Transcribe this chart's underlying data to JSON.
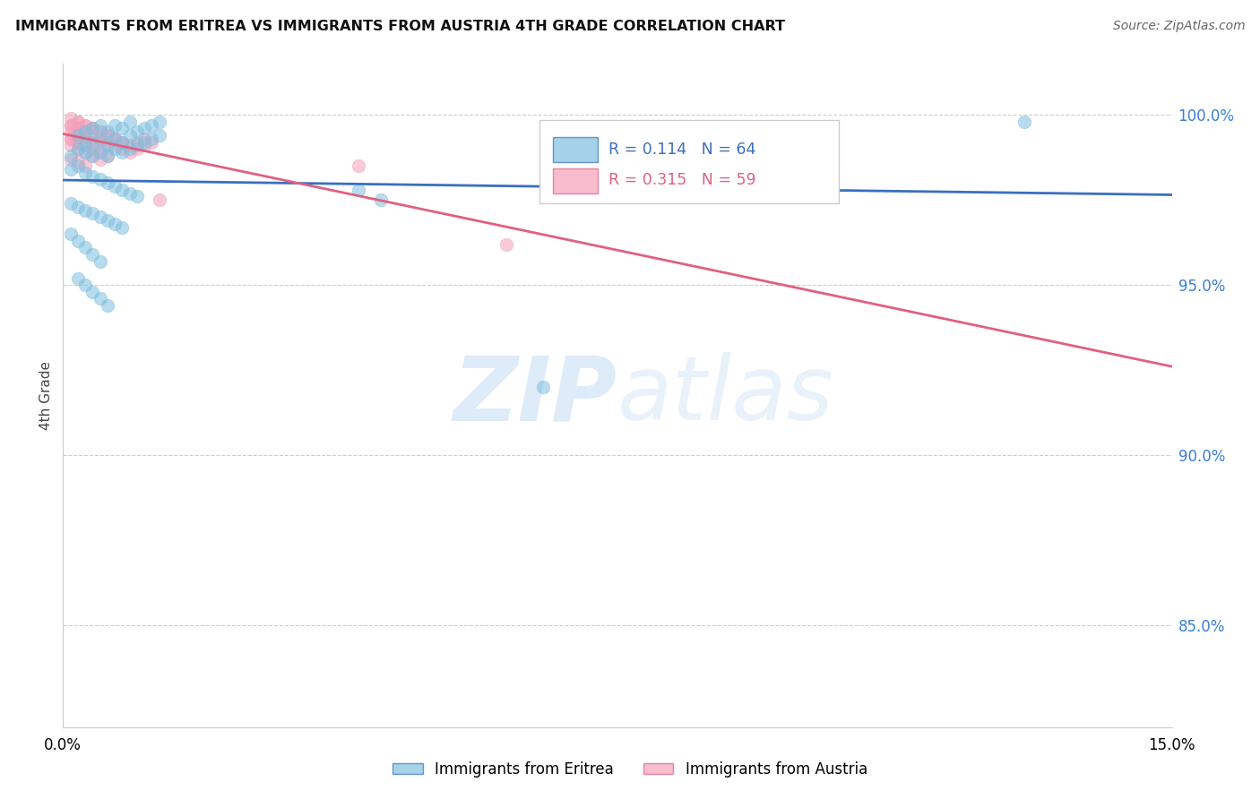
{
  "title": "IMMIGRANTS FROM ERITREA VS IMMIGRANTS FROM AUSTRIA 4TH GRADE CORRELATION CHART",
  "source": "Source: ZipAtlas.com",
  "ylabel": "4th Grade",
  "ytick_vals": [
    0.85,
    0.9,
    0.95,
    1.0
  ],
  "xlim": [
    0.0,
    0.15
  ],
  "ylim": [
    0.82,
    1.015
  ],
  "legend_eritrea_R": "0.114",
  "legend_eritrea_N": "64",
  "legend_austria_R": "0.315",
  "legend_austria_N": "59",
  "color_eritrea": "#7fbfdf",
  "color_austria": "#f4a0b8",
  "trendline_eritrea": "#3a6fbf",
  "trendline_austria": "#e06080",
  "watermark_zip": "ZIP",
  "watermark_atlas": "atlas",
  "eritrea_x": [
    0.001,
    0.002,
    0.002,
    0.003,
    0.003,
    0.003,
    0.004,
    0.004,
    0.004,
    0.005,
    0.005,
    0.005,
    0.006,
    0.006,
    0.006,
    0.007,
    0.007,
    0.007,
    0.008,
    0.008,
    0.008,
    0.009,
    0.009,
    0.009,
    0.01,
    0.01,
    0.011,
    0.011,
    0.012,
    0.012,
    0.013,
    0.013,
    0.001,
    0.002,
    0.003,
    0.004,
    0.005,
    0.006,
    0.007,
    0.008,
    0.009,
    0.01,
    0.001,
    0.002,
    0.003,
    0.004,
    0.005,
    0.006,
    0.007,
    0.008,
    0.002,
    0.003,
    0.004,
    0.005,
    0.006,
    0.04,
    0.043,
    0.065,
    0.13,
    0.001,
    0.002,
    0.003,
    0.004,
    0.005
  ],
  "eritrea_y": [
    0.988,
    0.99,
    0.994,
    0.989,
    0.991,
    0.995,
    0.988,
    0.992,
    0.996,
    0.989,
    0.993,
    0.997,
    0.988,
    0.991,
    0.995,
    0.99,
    0.993,
    0.997,
    0.989,
    0.992,
    0.996,
    0.99,
    0.994,
    0.998,
    0.991,
    0.995,
    0.992,
    0.996,
    0.993,
    0.997,
    0.994,
    0.998,
    0.984,
    0.985,
    0.983,
    0.982,
    0.981,
    0.98,
    0.979,
    0.978,
    0.977,
    0.976,
    0.974,
    0.973,
    0.972,
    0.971,
    0.97,
    0.969,
    0.968,
    0.967,
    0.952,
    0.95,
    0.948,
    0.946,
    0.944,
    0.978,
    0.975,
    0.92,
    0.998,
    0.965,
    0.963,
    0.961,
    0.959,
    0.957
  ],
  "austria_x": [
    0.001,
    0.002,
    0.002,
    0.003,
    0.003,
    0.004,
    0.004,
    0.005,
    0.005,
    0.006,
    0.006,
    0.007,
    0.007,
    0.008,
    0.008,
    0.009,
    0.009,
    0.01,
    0.01,
    0.011,
    0.011,
    0.012,
    0.001,
    0.002,
    0.003,
    0.004,
    0.005,
    0.006,
    0.007,
    0.008,
    0.001,
    0.002,
    0.003,
    0.004,
    0.005,
    0.006,
    0.001,
    0.002,
    0.003,
    0.004,
    0.005,
    0.001,
    0.002,
    0.003,
    0.004,
    0.001,
    0.002,
    0.003,
    0.004,
    0.005,
    0.001,
    0.002,
    0.003,
    0.04,
    0.013,
    0.06,
    0.001,
    0.002,
    0.003
  ],
  "austria_y": [
    0.997,
    0.996,
    0.998,
    0.995,
    0.997,
    0.994,
    0.996,
    0.993,
    0.995,
    0.992,
    0.994,
    0.991,
    0.993,
    0.99,
    0.992,
    0.989,
    0.991,
    0.99,
    0.992,
    0.991,
    0.993,
    0.992,
    0.999,
    0.998,
    0.997,
    0.996,
    0.995,
    0.994,
    0.993,
    0.992,
    0.993,
    0.992,
    0.991,
    0.99,
    0.989,
    0.988,
    0.995,
    0.994,
    0.993,
    0.992,
    0.991,
    0.997,
    0.996,
    0.995,
    0.994,
    0.991,
    0.99,
    0.989,
    0.988,
    0.987,
    0.993,
    0.992,
    0.991,
    0.985,
    0.975,
    0.962,
    0.987,
    0.986,
    0.985
  ]
}
